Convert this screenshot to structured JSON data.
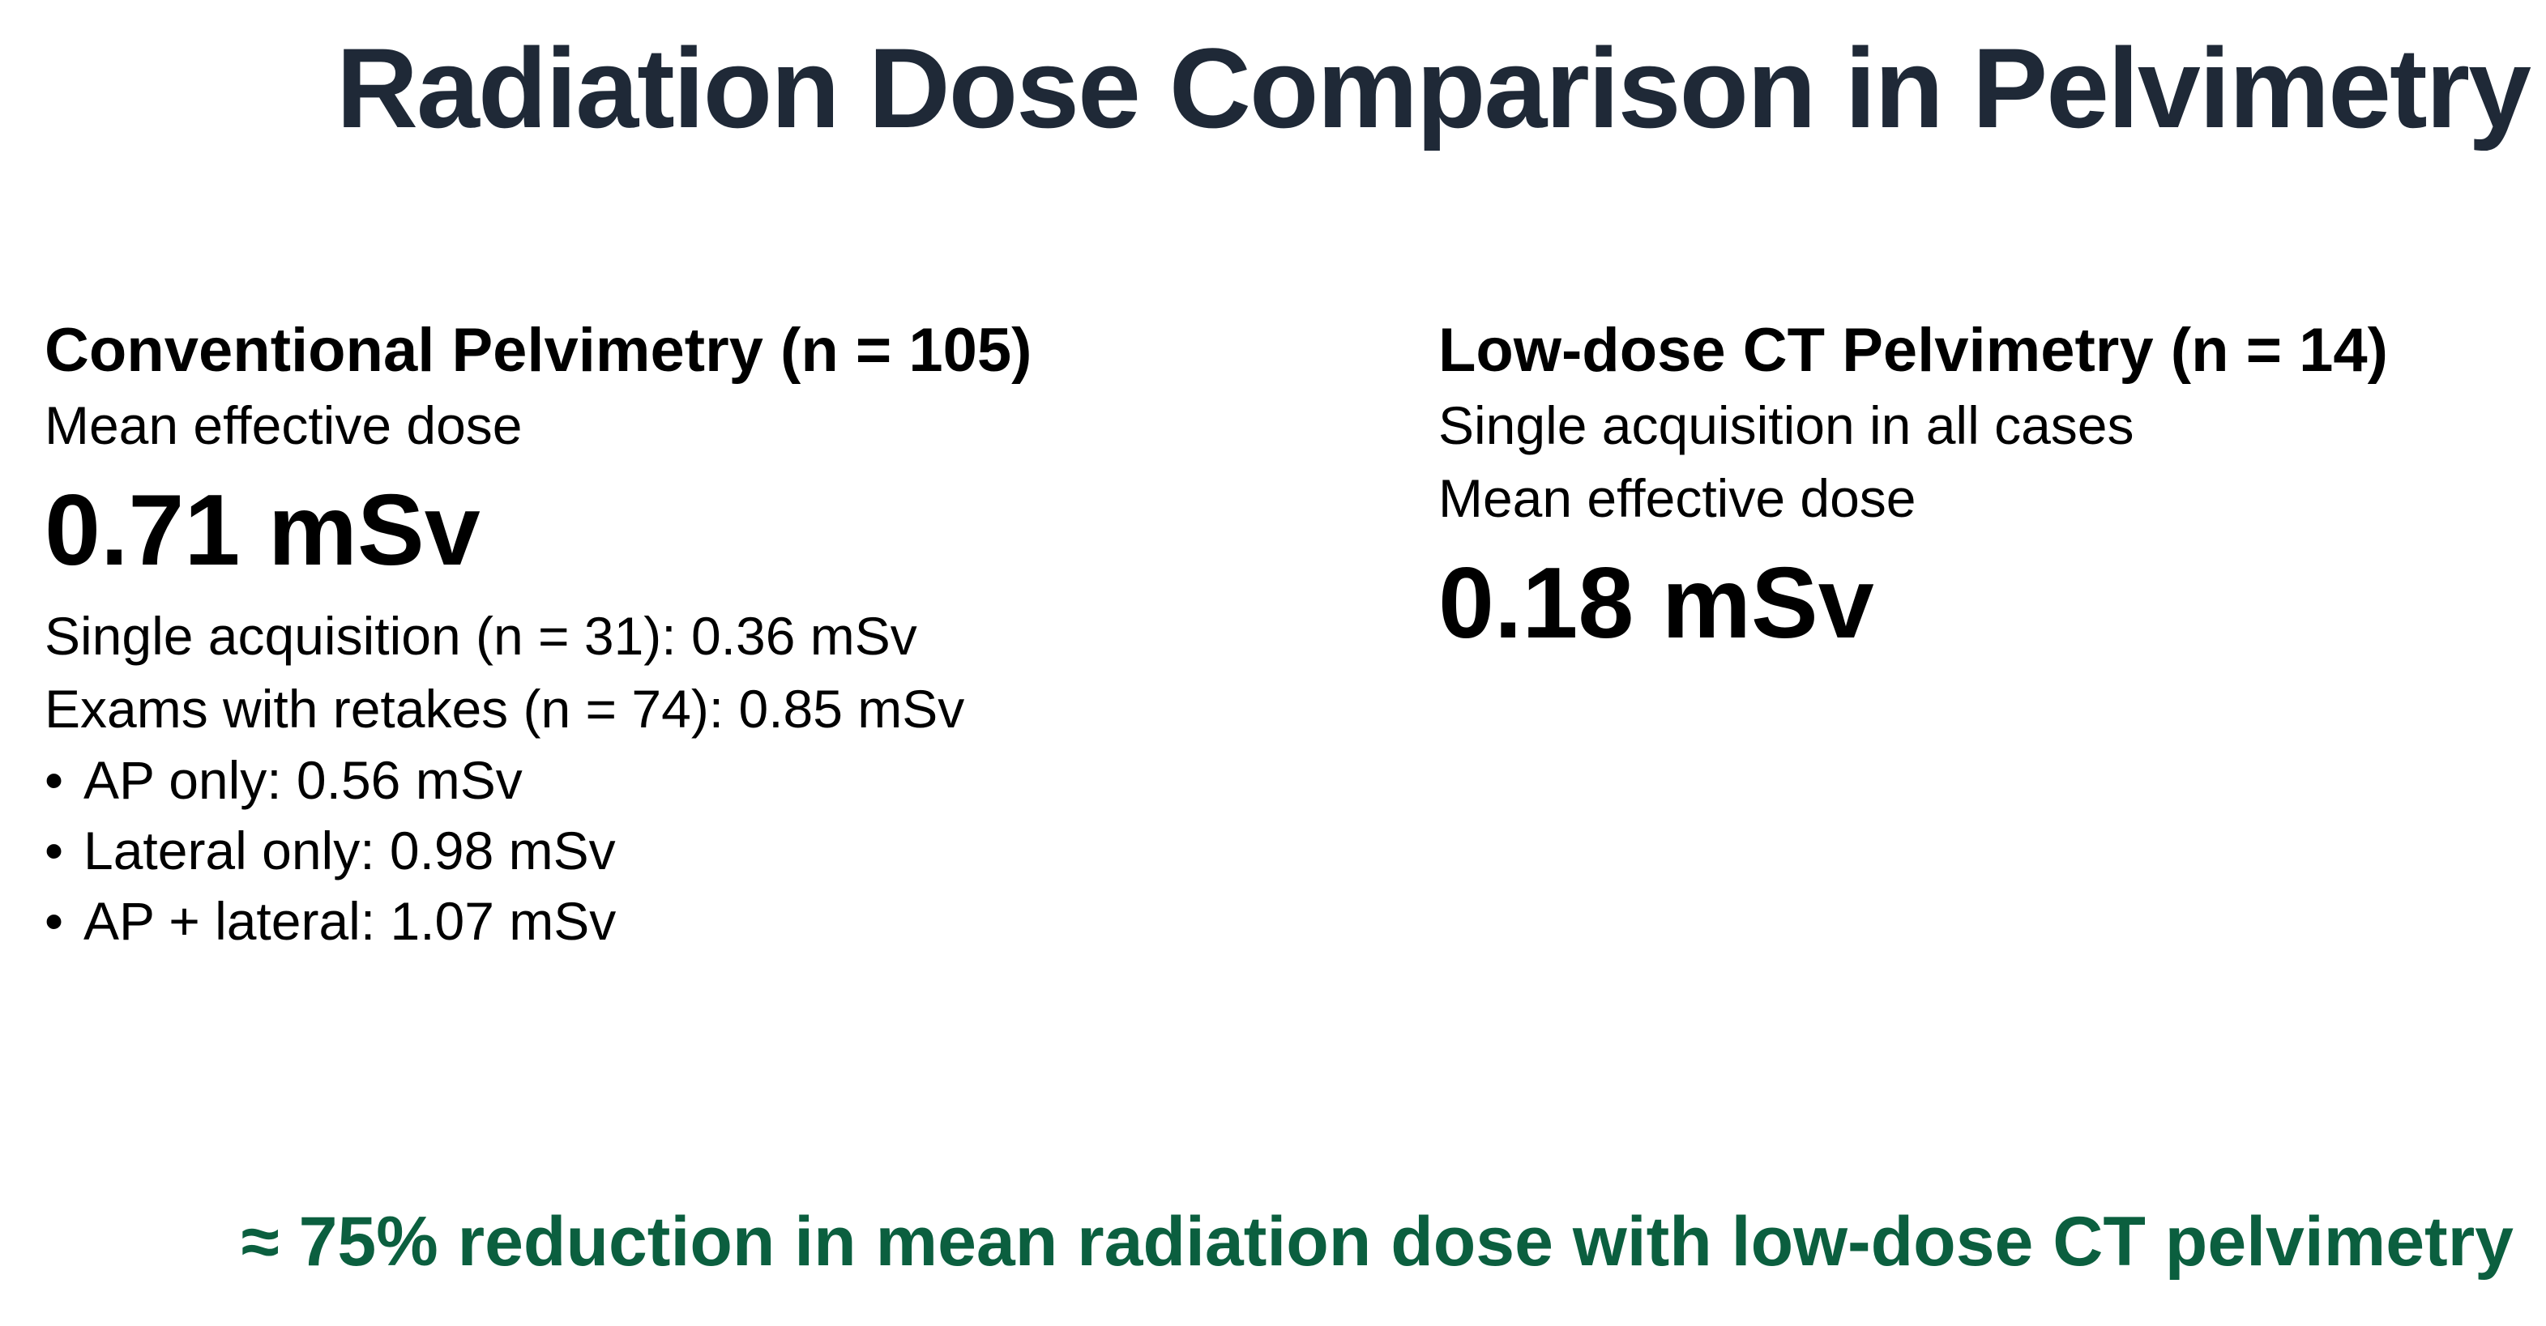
{
  "slide": {
    "title": "Radiation Dose Comparison in Pelvimetry",
    "conventional": {
      "heading": "Conventional Pelvimetry (n = 105)",
      "subtitle": "Mean effective dose",
      "dose": "0.71 mSv",
      "details": [
        "Single acquisition (n = 31): 0.36 mSv",
        "Exams with retakes (n = 74): 0.85 mSv"
      ],
      "bullets": [
        "AP only: 0.56 mSv",
        "Lateral only: 0.98 mSv",
        "AP + lateral: 1.07 mSv"
      ]
    },
    "lowdose": {
      "heading": "Low-dose CT Pelvimetry (n = 14)",
      "note": "Single acquisition in all cases",
      "subtitle": "Mean effective dose",
      "dose": "0.18 mSv"
    },
    "conclusion": "≈ 75% reduction in mean radiation dose with low-dose CT pelvimetry",
    "colors": {
      "title": "#1f2937",
      "body": "#000000",
      "conclusion": "#0b5f3f",
      "background": "#ffffff"
    }
  }
}
